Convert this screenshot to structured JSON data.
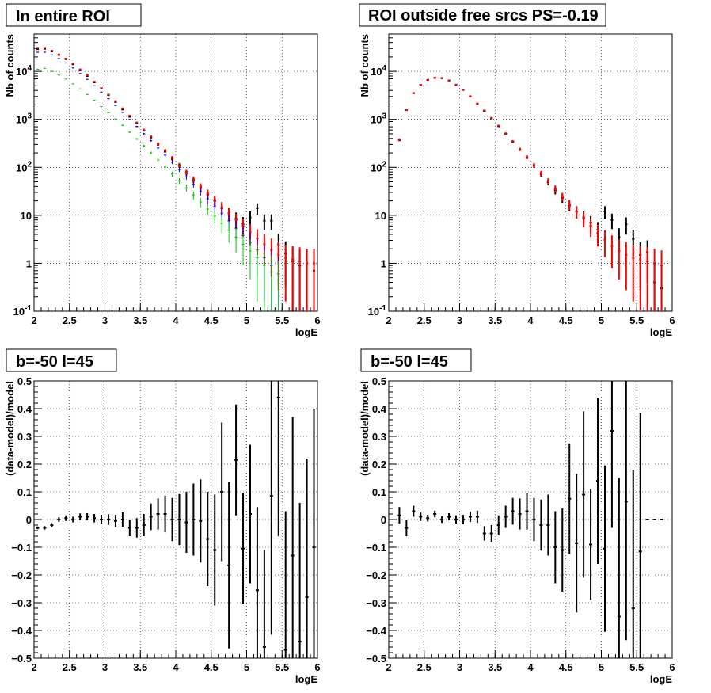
{
  "chart_data": [
    {
      "type": "scatter",
      "title": "In entire ROI",
      "xlabel": "logE",
      "ylabel": "Nb of counts",
      "xlim": [
        2,
        6
      ],
      "ylim": [
        0.1,
        60000
      ],
      "yscale": "log",
      "grid": true,
      "xticks": [
        {
          "v": 2,
          "t": "2"
        },
        {
          "v": 2.5,
          "t": "2.5"
        },
        {
          "v": 3,
          "t": "3"
        },
        {
          "v": 3.5,
          "t": "3.5"
        },
        {
          "v": 4,
          "t": "4"
        },
        {
          "v": 4.5,
          "t": "4.5"
        },
        {
          "v": 5,
          "t": "5"
        },
        {
          "v": 5.5,
          "t": "5.5"
        },
        {
          "v": 6,
          "t": "6"
        }
      ],
      "yticks": [
        {
          "v": 0.1,
          "t": "10^-1"
        },
        {
          "v": 1,
          "t": "1"
        },
        {
          "v": 10,
          "t": "10"
        },
        {
          "v": 100,
          "t": "10^2"
        },
        {
          "v": 1000,
          "t": "10^3"
        },
        {
          "v": 10000,
          "t": "10^4"
        }
      ],
      "binwidth": 0.1,
      "series": [
        {
          "color": "#000000",
          "errors": true,
          "x": [
            2.05,
            2.15,
            2.25,
            2.35,
            2.45,
            2.55,
            2.65,
            2.75,
            2.85,
            2.95,
            3.05,
            3.15,
            3.25,
            3.35,
            3.45,
            3.55,
            3.65,
            3.75,
            3.85,
            3.95,
            4.05,
            4.15,
            4.25,
            4.35,
            4.45,
            4.55,
            4.65,
            4.75,
            4.85,
            4.95,
            5.05,
            5.15,
            5.25,
            5.35,
            5.45,
            5.55,
            5.65,
            5.75,
            5.85,
            5.95
          ],
          "y": [
            29000,
            29500,
            26000,
            22000,
            18000,
            14000,
            10500,
            8000,
            5900,
            4400,
            3200,
            2300,
            1600,
            1130,
            820,
            580,
            420,
            300,
            215,
            150,
            108,
            76,
            54,
            37,
            27,
            20,
            14,
            11,
            8.5,
            6.6,
            9.0,
            14,
            7.7,
            7.7,
            2.5,
            1.6,
            1.1,
            0.9,
            1.0,
            0.7
          ]
        },
        {
          "color": "#ff0000",
          "errors": true,
          "x": [
            2.05,
            2.15,
            2.25,
            2.35,
            2.45,
            2.55,
            2.65,
            2.75,
            2.85,
            2.95,
            3.05,
            3.15,
            3.25,
            3.35,
            3.45,
            3.55,
            3.65,
            3.75,
            3.85,
            3.95,
            4.05,
            4.15,
            4.25,
            4.35,
            4.45,
            4.55,
            4.65,
            4.75,
            4.85,
            4.95,
            5.05,
            5.15,
            5.25,
            5.35,
            5.45,
            5.55,
            5.65,
            5.75,
            5.85,
            5.95
          ],
          "y": [
            31000,
            31000,
            27000,
            22500,
            18500,
            14500,
            11000,
            8300,
            6100,
            4500,
            3300,
            2400,
            1700,
            1200,
            860,
            610,
            440,
            310,
            225,
            160,
            113,
            80,
            57,
            40,
            29,
            21,
            15,
            11,
            8,
            6,
            4.5,
            3.3,
            2.5,
            1.9,
            1.5,
            1.3,
            1.2,
            1.1,
            1.0,
            1.0
          ]
        },
        {
          "color": "#0000ff",
          "errors": false,
          "x": [
            2.05,
            2.15,
            2.25,
            2.35,
            2.45,
            2.55,
            2.65,
            2.75,
            2.85,
            2.95,
            3.05,
            3.15,
            3.25,
            3.35,
            3.45,
            3.55,
            3.65,
            3.75,
            3.85,
            3.95,
            4.05,
            4.15,
            4.25,
            4.35,
            4.45,
            4.55,
            4.65,
            4.75,
            4.85,
            4.95,
            5.05,
            5.15,
            5.25,
            5.35,
            5.45
          ],
          "y": [
            25000,
            25000,
            22000,
            18500,
            15000,
            11800,
            9000,
            6800,
            5000,
            3700,
            2700,
            1950,
            1400,
            990,
            710,
            500,
            360,
            255,
            180,
            128,
            90,
            63,
            44,
            31,
            22,
            15.5,
            11,
            7.7,
            5.4,
            3.8,
            2.7,
            1.9,
            1.3,
            0.9,
            0.6
          ]
        },
        {
          "color": "#00cc00",
          "errors": false,
          "x": [
            2.05,
            2.15,
            2.25,
            2.35,
            2.45,
            2.55,
            2.65,
            2.75,
            2.85,
            2.95,
            3.05,
            3.15,
            3.25,
            3.35,
            3.45,
            3.55,
            3.65,
            3.75,
            3.85,
            3.95,
            4.05,
            4.15,
            4.25,
            4.35,
            4.45,
            4.55,
            4.65,
            4.75,
            4.85,
            4.95,
            5.05,
            5.15,
            5.25,
            5.35,
            5.45
          ],
          "y": [
            11000,
            11500,
            10000,
            8400,
            6900,
            5500,
            4300,
            3300,
            2500,
            1850,
            1380,
            1020,
            750,
            540,
            390,
            280,
            200,
            143,
            102,
            73,
            52,
            37,
            26.5,
            19,
            13.5,
            9.6,
            6.8,
            4.9,
            3.5,
            2.5,
            1.8,
            1.3,
            0.9,
            0.65,
            0.45
          ]
        }
      ]
    },
    {
      "type": "scatter",
      "title": "ROI outside free srcs PS=-0.19",
      "xlabel": "logE",
      "ylabel": "Nb of counts",
      "xlim": [
        2,
        6
      ],
      "ylim": [
        0.1,
        60000
      ],
      "yscale": "log",
      "grid": true,
      "xticks": [
        {
          "v": 2,
          "t": "2"
        },
        {
          "v": 2.5,
          "t": "2.5"
        },
        {
          "v": 3,
          "t": "3"
        },
        {
          "v": 3.5,
          "t": "3.5"
        },
        {
          "v": 4,
          "t": "4"
        },
        {
          "v": 4.5,
          "t": "4.5"
        },
        {
          "v": 5,
          "t": "5"
        },
        {
          "v": 5.5,
          "t": "5.5"
        },
        {
          "v": 6,
          "t": "6"
        }
      ],
      "yticks": [
        {
          "v": 0.1,
          "t": "10^-1"
        },
        {
          "v": 1,
          "t": "1"
        },
        {
          "v": 10,
          "t": "10"
        },
        {
          "v": 100,
          "t": "10^2"
        },
        {
          "v": 1000,
          "t": "10^3"
        },
        {
          "v": 10000,
          "t": "10^4"
        }
      ],
      "binwidth": 0.1,
      "series": [
        {
          "color": "#000000",
          "errors": true,
          "x": [
            2.15,
            2.25,
            2.35,
            2.45,
            2.55,
            2.65,
            2.75,
            2.85,
            2.95,
            3.05,
            3.15,
            3.25,
            3.35,
            3.45,
            3.55,
            3.65,
            3.75,
            3.85,
            3.95,
            4.05,
            4.15,
            4.25,
            4.35,
            4.45,
            4.55,
            4.65,
            4.75,
            4.85,
            4.95,
            5.05,
            5.15,
            5.25,
            5.35,
            5.45,
            5.55,
            5.65,
            5.75,
            5.85
          ],
          "y": [
            370,
            1560,
            3500,
            5200,
            6600,
            7300,
            7200,
            6400,
            5200,
            4100,
            3000,
            2100,
            1500,
            1050,
            720,
            500,
            340,
            235,
            160,
            108,
            72,
            49,
            33,
            23,
            16,
            12,
            9,
            7,
            5,
            12,
            8,
            3.5,
            6.5,
            3.2,
            1.5,
            1.7,
            0.4,
            0.3
          ]
        },
        {
          "color": "#ff0000",
          "errors": true,
          "x": [
            2.15,
            2.25,
            2.35,
            2.45,
            2.55,
            2.65,
            2.75,
            2.85,
            2.95,
            3.05,
            3.15,
            3.25,
            3.35,
            3.45,
            3.55,
            3.65,
            3.75,
            3.85,
            3.95,
            4.05,
            4.15,
            4.25,
            4.35,
            4.45,
            4.55,
            4.65,
            4.75,
            4.85,
            4.95,
            5.05,
            5.15,
            5.25,
            5.35,
            5.45,
            5.55,
            5.65,
            5.75,
            5.85
          ],
          "y": [
            380,
            1550,
            3550,
            5250,
            6700,
            7400,
            7300,
            6500,
            5300,
            4150,
            3050,
            2150,
            1540,
            1080,
            740,
            510,
            350,
            240,
            165,
            112,
            76,
            52,
            36,
            24.5,
            17,
            12,
            8.5,
            6,
            4.3,
            3.1,
            2.3,
            1.8,
            1.5,
            1.3,
            1.2,
            1.1,
            1.0,
            0.9
          ]
        }
      ]
    },
    {
      "type": "scatter",
      "title": "b=-50 l=45",
      "xlabel": "logE",
      "ylabel": "(data-model)/model",
      "xlim": [
        2,
        6
      ],
      "ylim": [
        -0.5,
        0.5
      ],
      "yscale": "linear",
      "grid": true,
      "xticks": [
        {
          "v": 2,
          "t": "2"
        },
        {
          "v": 2.5,
          "t": "2.5"
        },
        {
          "v": 3,
          "t": "3"
        },
        {
          "v": 3.5,
          "t": "3.5"
        },
        {
          "v": 4,
          "t": "4"
        },
        {
          "v": 4.5,
          "t": "4.5"
        },
        {
          "v": 5,
          "t": "5"
        },
        {
          "v": 5.5,
          "t": "5.5"
        },
        {
          "v": 6,
          "t": "6"
        }
      ],
      "yticks": [
        {
          "v": -0.5,
          "t": "−0.5"
        },
        {
          "v": -0.4,
          "t": "−0.4"
        },
        {
          "v": -0.3,
          "t": "−0.3"
        },
        {
          "v": -0.2,
          "t": "−0.2"
        },
        {
          "v": -0.1,
          "t": "−0.1"
        },
        {
          "v": 0,
          "t": "0"
        },
        {
          "v": 0.1,
          "t": "0.1"
        },
        {
          "v": 0.2,
          "t": "0.2"
        },
        {
          "v": 0.3,
          "t": "0.3"
        },
        {
          "v": 0.4,
          "t": "0.4"
        },
        {
          "v": 0.5,
          "t": "0.5"
        }
      ],
      "binwidth": 0.1,
      "series": [
        {
          "color": "#000000",
          "errors": true,
          "x": [
            2.05,
            2.15,
            2.25,
            2.35,
            2.45,
            2.55,
            2.65,
            2.75,
            2.85,
            2.95,
            3.05,
            3.15,
            3.25,
            3.35,
            3.45,
            3.55,
            3.65,
            3.75,
            3.85,
            3.95,
            4.05,
            4.15,
            4.25,
            4.35,
            4.45,
            4.55,
            4.65,
            4.75,
            4.85,
            4.95,
            5.05,
            5.15,
            5.25,
            5.35,
            5.45,
            5.55,
            5.65,
            5.75,
            5.85,
            5.95
          ],
          "y": [
            -0.03,
            -0.03,
            -0.02,
            0.0,
            0.005,
            0.0,
            0.01,
            0.01,
            0.005,
            0.0,
            0.0,
            -0.005,
            0.0,
            -0.03,
            -0.03,
            -0.02,
            0.01,
            0.02,
            0.02,
            0.0,
            0.0,
            -0.01,
            0.0,
            -0.005,
            -0.07,
            -0.11,
            0.1,
            -0.165,
            0.215,
            -0.105,
            0.02,
            -0.255,
            -0.46,
            0.085,
            0.44,
            -0.47,
            -0.13,
            -0.44,
            -0.28,
            -0.1
          ],
          "err": [
            0.005,
            0.006,
            0.007,
            0.008,
            0.01,
            0.01,
            0.012,
            0.013,
            0.015,
            0.017,
            0.019,
            0.022,
            0.026,
            0.03,
            0.035,
            0.04,
            0.048,
            0.056,
            0.066,
            0.078,
            0.092,
            0.11,
            0.13,
            0.15,
            0.17,
            0.2,
            0.25,
            0.3,
            0.2,
            0.2,
            0.25,
            0.3,
            0.35,
            0.5,
            0.5,
            0.5,
            0.5,
            0.5,
            0.5,
            0.5
          ]
        }
      ]
    },
    {
      "type": "scatter",
      "title": "b=-50 l=45",
      "xlabel": "logE",
      "ylabel": "(data-model)/model",
      "xlim": [
        2,
        6
      ],
      "ylim": [
        -0.5,
        0.5
      ],
      "yscale": "linear",
      "grid": true,
      "xticks": [
        {
          "v": 2,
          "t": "2"
        },
        {
          "v": 2.5,
          "t": "2.5"
        },
        {
          "v": 3,
          "t": "3"
        },
        {
          "v": 3.5,
          "t": "3.5"
        },
        {
          "v": 4,
          "t": "4"
        },
        {
          "v": 4.5,
          "t": "4.5"
        },
        {
          "v": 5,
          "t": "5"
        },
        {
          "v": 5.5,
          "t": "5.5"
        },
        {
          "v": 6,
          "t": "6"
        }
      ],
      "yticks": [
        {
          "v": -0.5,
          "t": "−0.5"
        },
        {
          "v": -0.4,
          "t": "−0.4"
        },
        {
          "v": -0.3,
          "t": "−0.3"
        },
        {
          "v": -0.2,
          "t": "−0.2"
        },
        {
          "v": -0.1,
          "t": "−0.1"
        },
        {
          "v": 0,
          "t": "0"
        },
        {
          "v": 0.1,
          "t": "0.1"
        },
        {
          "v": 0.2,
          "t": "0.2"
        },
        {
          "v": 0.3,
          "t": "0.3"
        },
        {
          "v": 0.4,
          "t": "0.4"
        },
        {
          "v": 0.5,
          "t": "0.5"
        }
      ],
      "binwidth": 0.1,
      "series": [
        {
          "color": "#000000",
          "errors": true,
          "x": [
            2.15,
            2.25,
            2.35,
            2.45,
            2.55,
            2.65,
            2.75,
            2.85,
            2.95,
            3.05,
            3.15,
            3.25,
            3.35,
            3.45,
            3.55,
            3.65,
            3.75,
            3.85,
            3.95,
            4.05,
            4.15,
            4.25,
            4.35,
            4.45,
            4.55,
            4.65,
            4.75,
            4.85,
            4.95,
            5.05,
            5.15,
            5.25,
            5.35,
            5.45,
            5.55,
            5.65,
            5.75,
            5.85
          ],
          "y": [
            0.015,
            -0.03,
            0.03,
            0.01,
            0.005,
            0.02,
            0.0,
            0.01,
            0.0,
            0.0,
            0.01,
            0.01,
            -0.05,
            -0.05,
            -0.02,
            0.01,
            0.03,
            0.02,
            0.03,
            0.0,
            -0.02,
            -0.02,
            -0.1,
            -0.11,
            0.075,
            -0.085,
            0.09,
            -0.09,
            0.14,
            -0.105,
            0.32,
            -0.35,
            0.065,
            -0.32,
            -0.115,
            0.0,
            0.0,
            0.0
          ],
          "err": [
            0.03,
            0.03,
            0.02,
            0.015,
            0.012,
            0.012,
            0.012,
            0.013,
            0.015,
            0.017,
            0.019,
            0.022,
            0.026,
            0.03,
            0.035,
            0.04,
            0.048,
            0.056,
            0.066,
            0.078,
            0.092,
            0.11,
            0.13,
            0.15,
            0.2,
            0.25,
            0.3,
            0.2,
            0.3,
            0.3,
            0.35,
            0.5,
            0.5,
            0.5,
            0.5,
            0.0,
            0.0,
            0.0
          ]
        }
      ]
    }
  ]
}
